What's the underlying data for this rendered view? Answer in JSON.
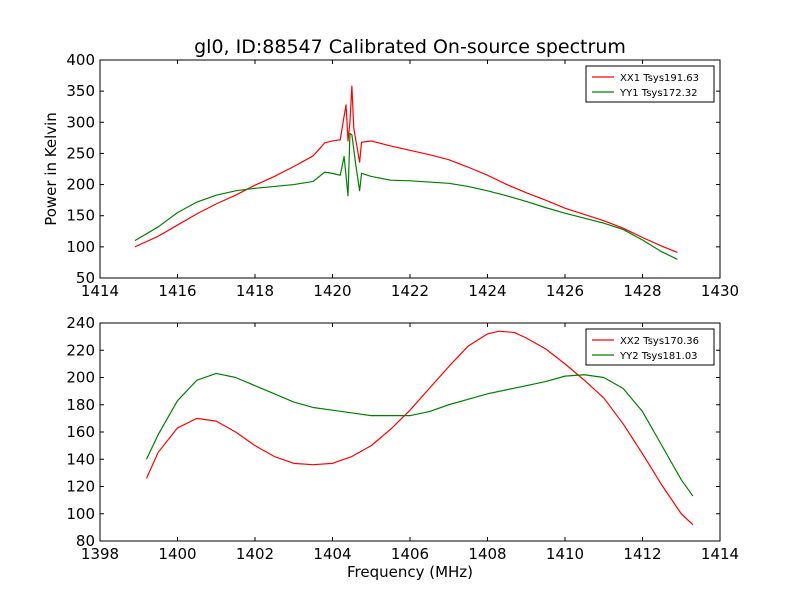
{
  "title": "gl0, ID:88547 Calibrated On-source spectrum",
  "chart_data": [
    {
      "type": "line",
      "name": "top-panel",
      "xlim": [
        1414,
        1430
      ],
      "ylim": [
        50,
        400
      ],
      "xticks": [
        1414,
        1416,
        1418,
        1420,
        1422,
        1424,
        1426,
        1428,
        1430
      ],
      "yticks": [
        50,
        100,
        150,
        200,
        250,
        300,
        350,
        400
      ],
      "xlabel": "",
      "ylabel": "Power in Kelvin",
      "legend_position": "top-right",
      "series": [
        {
          "name": "XX1 Tsys191.63",
          "color": "#ff0000",
          "points": [
            [
              1414.9,
              100
            ],
            [
              1415.5,
              117
            ],
            [
              1416.0,
              135
            ],
            [
              1416.5,
              153
            ],
            [
              1417.0,
              169
            ],
            [
              1417.5,
              183
            ],
            [
              1418.0,
              199
            ],
            [
              1418.5,
              213
            ],
            [
              1419.0,
              229
            ],
            [
              1419.5,
              246
            ],
            [
              1419.8,
              267
            ],
            [
              1420.0,
              270
            ],
            [
              1420.2,
              272
            ],
            [
              1420.3,
              310
            ],
            [
              1420.35,
              328
            ],
            [
              1420.4,
              270
            ],
            [
              1420.45,
              300
            ],
            [
              1420.5,
              358
            ],
            [
              1420.55,
              290
            ],
            [
              1420.6,
              272
            ],
            [
              1420.7,
              236
            ],
            [
              1420.75,
              268
            ],
            [
              1421.0,
              270
            ],
            [
              1421.5,
              262
            ],
            [
              1422.0,
              255
            ],
            [
              1422.5,
              248
            ],
            [
              1423.0,
              240
            ],
            [
              1423.5,
              228
            ],
            [
              1424.0,
              215
            ],
            [
              1424.5,
              200
            ],
            [
              1425.0,
              187
            ],
            [
              1425.5,
              175
            ],
            [
              1426.0,
              162
            ],
            [
              1426.5,
              152
            ],
            [
              1427.0,
              142
            ],
            [
              1427.5,
              130
            ],
            [
              1428.0,
              115
            ],
            [
              1428.5,
              101
            ],
            [
              1428.9,
              91
            ]
          ]
        },
        {
          "name": "YY1 Tsys172.32",
          "color": "#008000",
          "points": [
            [
              1414.9,
              110
            ],
            [
              1415.5,
              132
            ],
            [
              1416.0,
              155
            ],
            [
              1416.5,
              172
            ],
            [
              1417.0,
              183
            ],
            [
              1417.5,
              190
            ],
            [
              1418.0,
              194
            ],
            [
              1418.5,
              197
            ],
            [
              1419.0,
              200
            ],
            [
              1419.5,
              205
            ],
            [
              1419.8,
              220
            ],
            [
              1420.0,
              218
            ],
            [
              1420.2,
              215
            ],
            [
              1420.3,
              245
            ],
            [
              1420.4,
              182
            ],
            [
              1420.45,
              282
            ],
            [
              1420.5,
              280
            ],
            [
              1420.6,
              232
            ],
            [
              1420.7,
              190
            ],
            [
              1420.75,
              218
            ],
            [
              1421.0,
              213
            ],
            [
              1421.5,
              207
            ],
            [
              1422.0,
              206
            ],
            [
              1422.5,
              204
            ],
            [
              1423.0,
              202
            ],
            [
              1423.5,
              197
            ],
            [
              1424.0,
              190
            ],
            [
              1424.5,
              182
            ],
            [
              1425.0,
              173
            ],
            [
              1425.5,
              163
            ],
            [
              1426.0,
              154
            ],
            [
              1426.5,
              146
            ],
            [
              1427.0,
              138
            ],
            [
              1427.5,
              128
            ],
            [
              1428.0,
              111
            ],
            [
              1428.5,
              92
            ],
            [
              1428.9,
              80
            ]
          ]
        }
      ]
    },
    {
      "type": "line",
      "name": "bottom-panel",
      "xlim": [
        1398,
        1414
      ],
      "ylim": [
        80,
        240
      ],
      "xticks": [
        1398,
        1400,
        1402,
        1404,
        1406,
        1408,
        1410,
        1412,
        1414
      ],
      "yticks": [
        80,
        100,
        120,
        140,
        160,
        180,
        200,
        220,
        240
      ],
      "xlabel": "Frequency (MHz)",
      "ylabel": "",
      "legend_position": "top-right",
      "series": [
        {
          "name": "XX2 Tsys170.36",
          "color": "#ff0000",
          "points": [
            [
              1399.2,
              126
            ],
            [
              1399.5,
              145
            ],
            [
              1400.0,
              163
            ],
            [
              1400.5,
              170
            ],
            [
              1401.0,
              168
            ],
            [
              1401.5,
              160
            ],
            [
              1402.0,
              150
            ],
            [
              1402.5,
              142
            ],
            [
              1403.0,
              137
            ],
            [
              1403.5,
              136
            ],
            [
              1404.0,
              137
            ],
            [
              1404.5,
              142
            ],
            [
              1405.0,
              150
            ],
            [
              1405.5,
              162
            ],
            [
              1406.0,
              176
            ],
            [
              1406.5,
              192
            ],
            [
              1407.0,
              208
            ],
            [
              1407.5,
              223
            ],
            [
              1408.0,
              232
            ],
            [
              1408.3,
              234
            ],
            [
              1408.7,
              233
            ],
            [
              1409.0,
              229
            ],
            [
              1409.5,
              221
            ],
            [
              1410.0,
              210
            ],
            [
              1410.5,
              198
            ],
            [
              1411.0,
              185
            ],
            [
              1411.5,
              166
            ],
            [
              1412.0,
              144
            ],
            [
              1412.5,
              121
            ],
            [
              1413.0,
              100
            ],
            [
              1413.3,
              92
            ]
          ]
        },
        {
          "name": "YY2 Tsys181.03",
          "color": "#008000",
          "points": [
            [
              1399.2,
              140
            ],
            [
              1399.5,
              158
            ],
            [
              1400.0,
              183
            ],
            [
              1400.5,
              198
            ],
            [
              1401.0,
              203
            ],
            [
              1401.5,
              200
            ],
            [
              1402.0,
              194
            ],
            [
              1402.5,
              188
            ],
            [
              1403.0,
              182
            ],
            [
              1403.5,
              178
            ],
            [
              1404.0,
              176
            ],
            [
              1404.5,
              174
            ],
            [
              1405.0,
              172
            ],
            [
              1405.5,
              172
            ],
            [
              1406.0,
              172
            ],
            [
              1406.5,
              175
            ],
            [
              1407.0,
              180
            ],
            [
              1407.5,
              184
            ],
            [
              1408.0,
              188
            ],
            [
              1408.5,
              191
            ],
            [
              1409.0,
              194
            ],
            [
              1409.5,
              197
            ],
            [
              1410.0,
              201
            ],
            [
              1410.5,
              202
            ],
            [
              1411.0,
              200
            ],
            [
              1411.5,
              192
            ],
            [
              1412.0,
              175
            ],
            [
              1412.5,
              150
            ],
            [
              1413.0,
              125
            ],
            [
              1413.3,
              113
            ]
          ]
        }
      ]
    }
  ]
}
